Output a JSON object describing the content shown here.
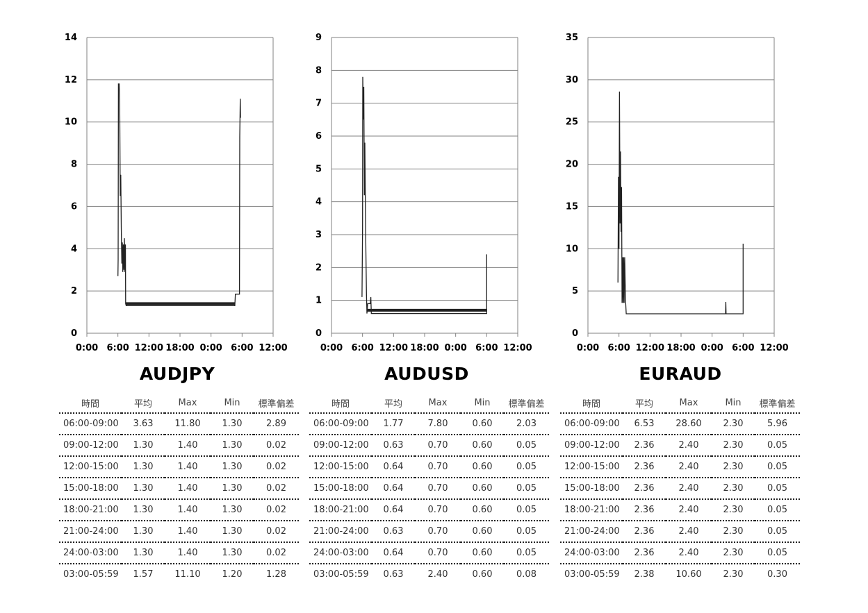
{
  "headers": [
    "時間",
    "平均",
    "Max",
    "Min",
    "標準偏差"
  ],
  "chart_data": [
    {
      "type": "line",
      "title": "AUDJPY",
      "x_ticks": [
        "0:00",
        "6:00",
        "12:00",
        "18:00",
        "0:00",
        "6:00",
        "12:00"
      ],
      "x_range_hours": [
        0,
        36
      ],
      "ylim": [
        0,
        14
      ],
      "y_ticks": [
        0,
        2,
        4,
        6,
        8,
        10,
        12,
        14
      ],
      "grid": true,
      "series": [
        {
          "values": [
            [
              6.0,
              2.7
            ],
            [
              6.05,
              3.5
            ],
            [
              6.1,
              11.8
            ],
            [
              6.25,
              11.8
            ],
            [
              6.35,
              10.7
            ],
            [
              6.45,
              6.5
            ],
            [
              6.55,
              7.5
            ],
            [
              6.65,
              5
            ],
            [
              6.75,
              3.3
            ],
            [
              6.85,
              4.3
            ],
            [
              6.95,
              2.9
            ],
            [
              7.05,
              4.2
            ],
            [
              7.15,
              3
            ],
            [
              7.25,
              4.5
            ],
            [
              7.35,
              2.9
            ],
            [
              7.45,
              4.2
            ],
            [
              7.5,
              1.4
            ],
            [
              7.6,
              1.3
            ],
            [
              12,
              1.3
            ],
            [
              18,
              1.3
            ],
            [
              24,
              1.3
            ],
            [
              28.6,
              1.3
            ],
            [
              28.7,
              1.85
            ],
            [
              29.5,
              1.85
            ],
            [
              29.55,
              9.3
            ],
            [
              29.65,
              11.1
            ],
            [
              29.7,
              10.2
            ]
          ]
        },
        {
          "values": [
            [
              7.5,
              1.4
            ],
            [
              28.6,
              1.4
            ]
          ]
        }
      ],
      "table": [
        [
          "06:00-09:00",
          "3.63",
          "11.80",
          "1.30",
          "2.89"
        ],
        [
          "09:00-12:00",
          "1.30",
          "1.40",
          "1.30",
          "0.02"
        ],
        [
          "12:00-15:00",
          "1.30",
          "1.40",
          "1.30",
          "0.02"
        ],
        [
          "15:00-18:00",
          "1.30",
          "1.40",
          "1.30",
          "0.02"
        ],
        [
          "18:00-21:00",
          "1.30",
          "1.40",
          "1.30",
          "0.02"
        ],
        [
          "21:00-24:00",
          "1.30",
          "1.40",
          "1.30",
          "0.02"
        ],
        [
          "24:00-03:00",
          "1.30",
          "1.40",
          "1.30",
          "0.02"
        ],
        [
          "03:00-05:59",
          "1.57",
          "11.10",
          "1.20",
          "1.28"
        ]
      ]
    },
    {
      "type": "line",
      "title": "AUDUSD",
      "x_ticks": [
        "0:00",
        "6:00",
        "12:00",
        "18:00",
        "0:00",
        "6:00",
        "12:00"
      ],
      "x_range_hours": [
        0,
        36
      ],
      "ylim": [
        0,
        9
      ],
      "y_ticks": [
        0,
        1,
        2,
        3,
        4,
        5,
        6,
        7,
        8,
        9
      ],
      "grid": true,
      "series": [
        {
          "values": [
            [
              5.9,
              1.1
            ],
            [
              6.0,
              3.2
            ],
            [
              6.05,
              7.8
            ],
            [
              6.15,
              6.5
            ],
            [
              6.25,
              7.5
            ],
            [
              6.35,
              4.2
            ],
            [
              6.45,
              5.8
            ],
            [
              6.55,
              3.8
            ],
            [
              6.65,
              2.5
            ],
            [
              6.75,
              1.2
            ],
            [
              6.85,
              0.6
            ],
            [
              7.0,
              0.9
            ],
            [
              7.5,
              0.9
            ],
            [
              7.6,
              1.1
            ],
            [
              7.7,
              0.6
            ],
            [
              12,
              0.6
            ],
            [
              18,
              0.6
            ],
            [
              24,
              0.6
            ],
            [
              30,
              0.6
            ],
            [
              30.0,
              2.4
            ]
          ]
        },
        {
          "values": [
            [
              6.9,
              0.7
            ],
            [
              30.0,
              0.7
            ]
          ]
        }
      ],
      "table": [
        [
          "06:00-09:00",
          "1.77",
          "7.80",
          "0.60",
          "2.03"
        ],
        [
          "09:00-12:00",
          "0.63",
          "0.70",
          "0.60",
          "0.05"
        ],
        [
          "12:00-15:00",
          "0.64",
          "0.70",
          "0.60",
          "0.05"
        ],
        [
          "15:00-18:00",
          "0.64",
          "0.70",
          "0.60",
          "0.05"
        ],
        [
          "18:00-21:00",
          "0.64",
          "0.70",
          "0.60",
          "0.05"
        ],
        [
          "21:00-24:00",
          "0.63",
          "0.70",
          "0.60",
          "0.05"
        ],
        [
          "24:00-03:00",
          "0.64",
          "0.70",
          "0.60",
          "0.05"
        ],
        [
          "03:00-05:59",
          "0.63",
          "2.40",
          "0.60",
          "0.08"
        ]
      ]
    },
    {
      "type": "line",
      "title": "EURAUD",
      "x_ticks": [
        "0:00",
        "6:00",
        "12:00",
        "18:00",
        "0:00",
        "6:00",
        "12:00"
      ],
      "x_range_hours": [
        0,
        36
      ],
      "ylim": [
        0,
        35
      ],
      "y_ticks": [
        0,
        5,
        10,
        15,
        20,
        25,
        30,
        35
      ],
      "grid": true,
      "series": [
        {
          "values": [
            [
              5.8,
              6
            ],
            [
              5.9,
              18.5
            ],
            [
              6.0,
              10
            ],
            [
              6.1,
              28.6
            ],
            [
              6.2,
              13
            ],
            [
              6.3,
              21.5
            ],
            [
              6.4,
              12
            ],
            [
              6.5,
              17.3
            ],
            [
              6.6,
              3.6
            ],
            [
              6.7,
              9
            ],
            [
              6.8,
              3.6
            ],
            [
              6.9,
              9
            ],
            [
              7.0,
              3.6
            ],
            [
              7.1,
              9
            ],
            [
              7.2,
              5.9
            ],
            [
              7.3,
              3.6
            ],
            [
              7.4,
              2.3
            ],
            [
              12,
              2.3
            ],
            [
              18,
              2.3
            ],
            [
              24,
              2.3
            ],
            [
              26.6,
              2.3
            ],
            [
              26.65,
              3.7
            ],
            [
              26.7,
              2.3
            ],
            [
              30,
              2.3
            ],
            [
              30.0,
              10.6
            ]
          ]
        },
        {
          "values": [
            [
              6.6,
              5.9
            ],
            [
              7.2,
              5.9
            ]
          ]
        }
      ],
      "table": [
        [
          "06:00-09:00",
          "6.53",
          "28.60",
          "2.30",
          "5.96"
        ],
        [
          "09:00-12:00",
          "2.36",
          "2.40",
          "2.30",
          "0.05"
        ],
        [
          "12:00-15:00",
          "2.36",
          "2.40",
          "2.30",
          "0.05"
        ],
        [
          "15:00-18:00",
          "2.36",
          "2.40",
          "2.30",
          "0.05"
        ],
        [
          "18:00-21:00",
          "2.36",
          "2.40",
          "2.30",
          "0.05"
        ],
        [
          "21:00-24:00",
          "2.36",
          "2.40",
          "2.30",
          "0.05"
        ],
        [
          "24:00-03:00",
          "2.36",
          "2.40",
          "2.30",
          "0.05"
        ],
        [
          "03:00-05:59",
          "2.38",
          "10.60",
          "2.30",
          "0.30"
        ]
      ]
    }
  ]
}
